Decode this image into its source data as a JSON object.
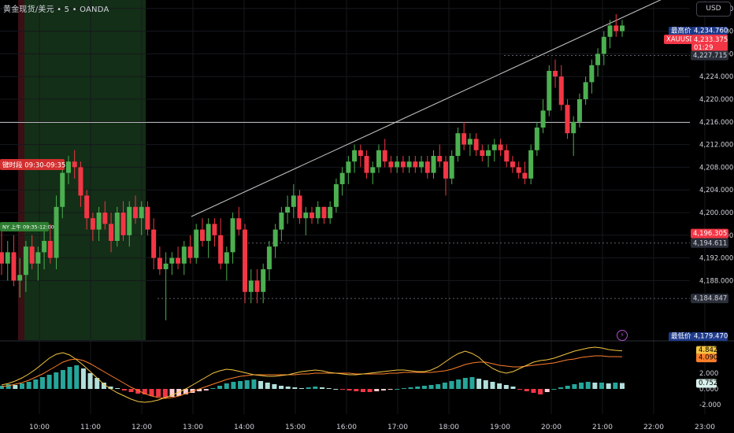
{
  "header": {
    "symbol": "黄金现货/美元",
    "interval": "5",
    "broker": "OANDA",
    "sep": "•"
  },
  "currency_button": "USD",
  "session_labels": {
    "asia": "键时段 09:30-09:35",
    "ny": "NY 上午 09:35-12:00"
  },
  "price_badges": {
    "high_label": "最高价",
    "high_value": "4,234.760",
    "symbol_label": "XAUUSD",
    "last_value": "4,233.375",
    "countdown": "01:29",
    "level_1": "4,227.715",
    "level_2": "4,196.305",
    "level_3": "4,194.611",
    "level_4": "4,184.847",
    "low_label": "最低价",
    "low_value": "4,179.470"
  },
  "indicator_badges": {
    "macd_line": "4.842",
    "signal_line": "4.090",
    "histogram": "0.752"
  },
  "colors": {
    "up": "#26a69a",
    "up_candle": "#4caf50",
    "down": "#f23645",
    "macd": "#f5c542",
    "signal": "#ff7f2a",
    "session_green": "#15341a",
    "session_red": "#3a1014",
    "badge_blue": "#1e3a8a",
    "trendline": "#cfcfcf"
  },
  "chart_data": [
    {
      "type": "candlestick",
      "title": "",
      "price_axis_ticks": [
        4236,
        4232,
        4228,
        4224,
        4220,
        4216,
        4212,
        4208,
        4204,
        4200,
        4196,
        4192,
        4188
      ],
      "price_axis_labels": [
        "4,236.000",
        "4,232.000",
        "4,228.000",
        "4,224.000",
        "4,220.000",
        "4,216.000",
        "4,212.000",
        "4,208.000",
        "4,204.000",
        "4,200.000",
        "4,196.000",
        "4,192.000",
        "4,188.000"
      ],
      "ylim": [
        4177.5,
        4237.5
      ],
      "time_axis_labels": [
        "10:00",
        "11:00",
        "12:00",
        "13:00",
        "14:00",
        "15:00",
        "16:00",
        "17:00",
        "18:00",
        "19:00",
        "20:00",
        "21:00",
        "22:00",
        "23:00"
      ],
      "horizontal_levels": [
        4227.715,
        4194.611,
        4184.847,
        4215.9
      ],
      "trendline": {
        "from": [
          "12:58",
          4199.3
        ],
        "to": [
          "22:15",
          4238.0
        ]
      },
      "candles": [
        [
          4193,
          4197,
          4189,
          4191
        ],
        [
          4191,
          4195,
          4188,
          4193
        ],
        [
          4193,
          4196,
          4187,
          4188
        ],
        [
          4188,
          4192,
          4185,
          4189
        ],
        [
          4189,
          4195,
          4186,
          4194
        ],
        [
          4194,
          4196,
          4190,
          4191
        ],
        [
          4191,
          4194,
          4188,
          4193
        ],
        [
          4193,
          4197,
          4190,
          4195
        ],
        [
          4195,
          4198,
          4191,
          4192
        ],
        [
          4192,
          4203,
          4190,
          4201
        ],
        [
          4201,
          4209,
          4199,
          4207
        ],
        [
          4207,
          4210,
          4205,
          4209
        ],
        [
          4209,
          4211,
          4206,
          4208
        ],
        [
          4208,
          4209,
          4201,
          4203
        ],
        [
          4203,
          4204,
          4197,
          4199
        ],
        [
          4199,
          4200,
          4195,
          4197
        ],
        [
          4197,
          4201,
          4195,
          4200
        ],
        [
          4200,
          4202,
          4197,
          4198
        ],
        [
          4198,
          4200,
          4193,
          4195
        ],
        [
          4195,
          4201,
          4194,
          4200
        ],
        [
          4200,
          4202,
          4195,
          4196
        ],
        [
          4196,
          4202,
          4194,
          4201
        ],
        [
          4201,
          4203,
          4198,
          4199
        ],
        [
          4199,
          4202,
          4196,
          4201
        ],
        [
          4201,
          4202,
          4196,
          4197
        ],
        [
          4197,
          4199,
          4190,
          4192
        ],
        [
          4192,
          4194,
          4189,
          4190
        ],
        [
          4190,
          4193,
          4181,
          4191
        ],
        [
          4191,
          4193,
          4189,
          4192
        ],
        [
          4192,
          4194,
          4190,
          4191
        ],
        [
          4191,
          4195,
          4189,
          4194
        ],
        [
          4194,
          4196,
          4191,
          4192
        ],
        [
          4192,
          4198,
          4191,
          4197
        ],
        [
          4197,
          4199,
          4194,
          4195
        ],
        [
          4195,
          4199,
          4192,
          4198
        ],
        [
          4198,
          4199,
          4194,
          4196
        ],
        [
          4196,
          4199,
          4190,
          4191
        ],
        [
          4191,
          4194,
          4188,
          4193
        ],
        [
          4193,
          4200,
          4191,
          4199
        ],
        [
          4199,
          4201,
          4196,
          4197
        ],
        [
          4197,
          4198,
          4184,
          4186
        ],
        [
          4186,
          4190,
          4184,
          4188
        ],
        [
          4188,
          4190,
          4184,
          4186
        ],
        [
          4186,
          4191,
          4184,
          4190
        ],
        [
          4190,
          4195,
          4188,
          4194
        ],
        [
          4194,
          4198,
          4192,
          4197
        ],
        [
          4197,
          4201,
          4195,
          4200
        ],
        [
          4200,
          4203,
          4198,
          4201
        ],
        [
          4201,
          4205,
          4199,
          4203
        ],
        [
          4203,
          4204,
          4198,
          4199
        ],
        [
          4199,
          4201,
          4196,
          4200
        ],
        [
          4200,
          4201,
          4198,
          4199
        ],
        [
          4199,
          4202,
          4198,
          4201
        ],
        [
          4201,
          4201,
          4198,
          4199
        ],
        [
          4199,
          4202,
          4198,
          4201
        ],
        [
          4201,
          4206,
          4200,
          4205
        ],
        [
          4205,
          4208,
          4203,
          4207
        ],
        [
          4207,
          4210,
          4205,
          4209
        ],
        [
          4209,
          4212,
          4207,
          4211
        ],
        [
          4211,
          4212,
          4208,
          4210
        ],
        [
          4210,
          4211,
          4206,
          4207
        ],
        [
          4207,
          4209,
          4205,
          4208
        ],
        [
          4208,
          4212,
          4207,
          4211
        ],
        [
          4211,
          4213,
          4208,
          4209
        ],
        [
          4209,
          4210,
          4207,
          4208
        ],
        [
          4208,
          4210,
          4207,
          4209
        ],
        [
          4209,
          4210,
          4207,
          4208
        ],
        [
          4208,
          4210,
          4207,
          4209
        ],
        [
          4209,
          4210,
          4207,
          4208
        ],
        [
          4208,
          4210,
          4207,
          4209
        ],
        [
          4209,
          4210,
          4206,
          4207
        ],
        [
          4207,
          4211,
          4206,
          4210
        ],
        [
          4210,
          4212,
          4208,
          4209
        ],
        [
          4209,
          4210,
          4203,
          4206
        ],
        [
          4206,
          4211,
          4205,
          4210
        ],
        [
          4210,
          4215,
          4209,
          4214
        ],
        [
          4214,
          4216,
          4211,
          4212
        ],
        [
          4212,
          4214,
          4210,
          4213
        ],
        [
          4213,
          4214,
          4210,
          4211
        ],
        [
          4211,
          4212,
          4209,
          4210
        ],
        [
          4210,
          4212,
          4208,
          4211
        ],
        [
          4211,
          4213,
          4209,
          4212
        ],
        [
          4212,
          4213,
          4210,
          4211
        ],
        [
          4211,
          4212,
          4208,
          4209
        ],
        [
          4209,
          4210,
          4207,
          4208
        ],
        [
          4208,
          4209,
          4206,
          4207
        ],
        [
          4207,
          4209,
          4205,
          4206
        ],
        [
          4206,
          4212,
          4205,
          4211
        ],
        [
          4211,
          4216,
          4210,
          4215
        ],
        [
          4215,
          4220,
          4214,
          4218
        ],
        [
          4218,
          4226,
          4217,
          4225
        ],
        [
          4225,
          4227,
          4222,
          4224
        ],
        [
          4224,
          4226,
          4218,
          4219
        ],
        [
          4219,
          4220,
          4213,
          4214
        ],
        [
          4214,
          4217,
          4210,
          4216
        ],
        [
          4216,
          4221,
          4215,
          4220
        ],
        [
          4220,
          4224,
          4219,
          4223
        ],
        [
          4223,
          4227,
          4221,
          4226
        ],
        [
          4226,
          4229,
          4224,
          4228
        ],
        [
          4228,
          4232,
          4226,
          4231
        ],
        [
          4231,
          4234,
          4229,
          4233
        ],
        [
          4233,
          4235,
          4231,
          4232
        ],
        [
          4232,
          4234,
          4231,
          4233
        ]
      ]
    },
    {
      "type": "bar",
      "title": "",
      "ylim": [
        -3.2,
        5.8
      ],
      "axis_labels": [
        "2.000",
        "0.000",
        "-2.000"
      ],
      "series": [
        {
          "values": [
            0.4,
            0.6,
            0.5,
            0.7,
            0.9,
            1.2,
            1.5,
            1.8,
            2.1,
            2.4,
            2.8,
            3.0,
            2.6,
            2.0,
            1.4,
            0.8,
            0.3,
            0.1,
            -0.2,
            -0.4,
            -0.6,
            -0.7,
            -0.9,
            -1.0,
            -1.1,
            -1.0,
            -0.9,
            -0.7,
            -0.5,
            -0.3,
            -0.2,
            0.1,
            0.4,
            0.7,
            0.9,
            1.0,
            1.1,
            1.2,
            1.0,
            0.8,
            0.6,
            0.4,
            0.3,
            0.2,
            0.1,
            0.2,
            0.3,
            0.2,
            0.1,
            0.0,
            -0.1,
            -0.2,
            -0.3,
            -0.4,
            -0.4,
            -0.3,
            -0.2,
            -0.1,
            0.0,
            0.1,
            0.2,
            0.3,
            0.4,
            0.5,
            0.6,
            0.8,
            1.0,
            1.2,
            1.4,
            1.5,
            1.3,
            1.1,
            0.9,
            0.7,
            0.5,
            0.3,
            -0.1,
            -0.3,
            -0.5,
            -0.7,
            -0.4,
            0.0,
            0.2,
            0.4,
            0.6,
            0.8,
            0.9,
            0.8,
            0.8,
            0.7,
            0.8,
            0.75
          ]
        },
        {
          "values": [
            0.5,
            0.7,
            1.0,
            1.4,
            1.9,
            2.5,
            3.2,
            3.9,
            4.4,
            4.6,
            4.3,
            3.7,
            3.0,
            2.2,
            1.4,
            0.6,
            0.0,
            -0.5,
            -0.9,
            -1.3,
            -1.6,
            -1.7,
            -1.6,
            -1.4,
            -1.1,
            -0.8,
            -0.4,
            0.0,
            0.5,
            1.0,
            1.5,
            2.0,
            2.3,
            2.5,
            2.4,
            2.2,
            2.0,
            1.8,
            1.7,
            1.6,
            1.6,
            1.7,
            1.8,
            2.0,
            2.2,
            2.3,
            2.4,
            2.3,
            2.1,
            2.0,
            1.9,
            1.8,
            1.8,
            1.9,
            2.0,
            2.1,
            2.2,
            2.3,
            2.4,
            2.4,
            2.3,
            2.2,
            2.2,
            2.4,
            2.8,
            3.4,
            4.0,
            4.5,
            4.8,
            4.5,
            4.0,
            3.2,
            2.6,
            2.2,
            2.0,
            2.2,
            2.6,
            3.0,
            3.4,
            3.6,
            3.7,
            3.9,
            4.2,
            4.5,
            4.8,
            5.0,
            5.2,
            5.3,
            5.2,
            5.0,
            4.9,
            4.84
          ]
        },
        {
          "values": [
            0.3,
            0.4,
            0.6,
            0.8,
            1.1,
            1.5,
            1.9,
            2.4,
            2.9,
            3.4,
            3.7,
            3.8,
            3.6,
            3.2,
            2.7,
            2.2,
            1.7,
            1.2,
            0.7,
            0.2,
            -0.2,
            -0.6,
            -0.9,
            -1.1,
            -1.2,
            -1.1,
            -0.9,
            -0.6,
            -0.3,
            0.0,
            0.3,
            0.6,
            0.9,
            1.2,
            1.4,
            1.6,
            1.7,
            1.8,
            1.8,
            1.8,
            1.8,
            1.8,
            1.8,
            1.8,
            1.9,
            1.9,
            2.0,
            2.0,
            2.0,
            2.0,
            2.0,
            2.0,
            1.9,
            1.9,
            1.9,
            1.9,
            1.9,
            2.0,
            2.0,
            2.1,
            2.1,
            2.1,
            2.1,
            2.1,
            2.2,
            2.3,
            2.5,
            2.8,
            3.1,
            3.3,
            3.4,
            3.4,
            3.2,
            3.0,
            2.9,
            2.8,
            2.8,
            2.9,
            3.0,
            3.1,
            3.2,
            3.3,
            3.5,
            3.7,
            3.8,
            4.0,
            4.1,
            4.2,
            4.2,
            4.1,
            4.1,
            4.09
          ]
        }
      ]
    }
  ]
}
